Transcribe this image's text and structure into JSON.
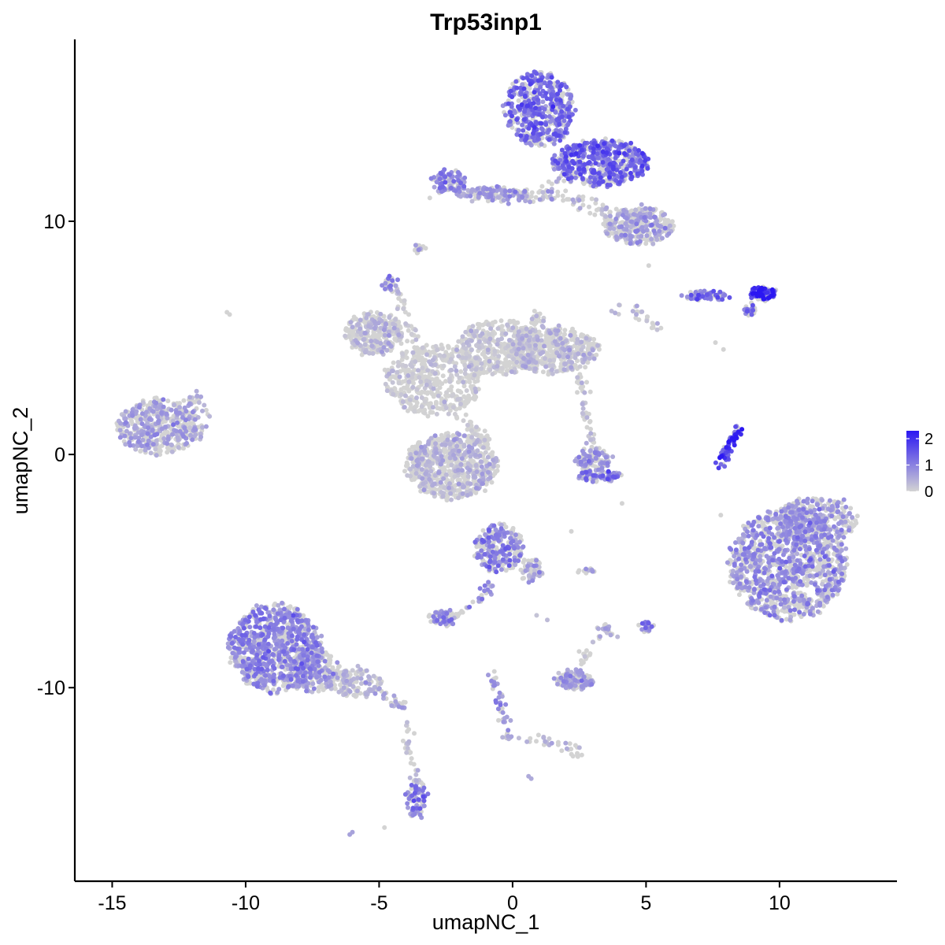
{
  "chart_data": {
    "type": "scatter",
    "title": "Trp53inp1",
    "xlabel": "umapNC_1",
    "ylabel": "umapNC_2",
    "xlim": [
      -16.4,
      14.4
    ],
    "ylim": [
      -18.3,
      17.8
    ],
    "x_ticks": [
      -15,
      -10,
      -5,
      0,
      5,
      10
    ],
    "x_tick_labels": [
      "-15",
      "-10",
      "-5",
      "0",
      "5",
      "10"
    ],
    "y_ticks": [
      -10,
      0,
      10
    ],
    "y_tick_labels": [
      "-10",
      "0",
      "10"
    ],
    "grid": false,
    "legend": {
      "position": "right",
      "type": "colorbar",
      "labels": [
        "2",
        "1",
        "0"
      ],
      "values": [
        2,
        1,
        0
      ],
      "range": [
        0,
        2.3
      ],
      "low_color": "#d3d3d3",
      "high_color": "#2b17f2"
    },
    "clusters": [
      {
        "cx": -13.3,
        "cy": 1.2,
        "rx": 1.5,
        "ry": 1.2,
        "n": 420,
        "expr": 0.55
      },
      {
        "cx": -11.9,
        "cy": 1.6,
        "rx": 0.5,
        "ry": 1.0,
        "n": 70,
        "expr": 0.45
      },
      {
        "cx": -8.9,
        "cy": -8.3,
        "rx": 1.7,
        "ry": 1.9,
        "n": 900,
        "expr": 0.85
      },
      {
        "cx": -7.5,
        "cy": -9.3,
        "rx": 1.0,
        "ry": 0.9,
        "n": 220,
        "expr": 0.6
      },
      {
        "cx": -5.9,
        "cy": -9.8,
        "rx": 1.0,
        "ry": 0.6,
        "n": 140,
        "expr": 0.35
      },
      {
        "cx": -3.6,
        "cy": -14.8,
        "rx": 0.35,
        "ry": 0.8,
        "n": 80,
        "expr": 0.9
      },
      {
        "cx": -5.2,
        "cy": 5.2,
        "rx": 1.1,
        "ry": 0.9,
        "n": 300,
        "expr": 0.35
      },
      {
        "cx": -2.3,
        "cy": -0.5,
        "rx": 1.7,
        "ry": 1.4,
        "n": 700,
        "expr": 0.35
      },
      {
        "cx": -3.0,
        "cy": 3.2,
        "rx": 1.8,
        "ry": 1.5,
        "n": 450,
        "expr": 0.15
      },
      {
        "cx": -0.5,
        "cy": 4.6,
        "rx": 1.6,
        "ry": 1.2,
        "n": 400,
        "expr": 0.2
      },
      {
        "cx": 1.5,
        "cy": 4.5,
        "rx": 1.7,
        "ry": 1.0,
        "n": 450,
        "expr": 0.3
      },
      {
        "cx": -4.6,
        "cy": 7.3,
        "rx": 0.3,
        "ry": 0.3,
        "n": 25,
        "expr": 0.8
      },
      {
        "cx": -3.5,
        "cy": 8.8,
        "rx": 0.2,
        "ry": 0.2,
        "n": 15,
        "expr": 0.4
      },
      {
        "cx": 1.0,
        "cy": 14.8,
        "rx": 1.3,
        "ry": 1.6,
        "n": 500,
        "expr": 1.15
      },
      {
        "cx": 3.3,
        "cy": 12.5,
        "rx": 1.8,
        "ry": 1.0,
        "n": 500,
        "expr": 1.2
      },
      {
        "cx": 4.7,
        "cy": 9.8,
        "rx": 1.3,
        "ry": 0.8,
        "n": 300,
        "expr": 0.55
      },
      {
        "cx": -2.4,
        "cy": 11.7,
        "rx": 0.6,
        "ry": 0.5,
        "n": 100,
        "expr": 0.8
      },
      {
        "cx": -0.8,
        "cy": 11.2,
        "rx": 1.4,
        "ry": 0.25,
        "n": 120,
        "expr": 0.6
      },
      {
        "cx": 9.4,
        "cy": 6.9,
        "rx": 0.5,
        "ry": 0.25,
        "n": 90,
        "expr": 1.9
      },
      {
        "cx": 7.3,
        "cy": 6.8,
        "rx": 0.9,
        "ry": 0.2,
        "n": 60,
        "expr": 1.2
      },
      {
        "cx": 8.9,
        "cy": 6.2,
        "rx": 0.2,
        "ry": 0.25,
        "n": 20,
        "expr": 1.1
      },
      {
        "cx": 10.3,
        "cy": -4.7,
        "rx": 2.2,
        "ry": 2.4,
        "n": 1100,
        "expr": 0.75
      },
      {
        "cx": 11.4,
        "cy": -2.8,
        "rx": 1.5,
        "ry": 1.0,
        "n": 300,
        "expr": 0.7
      },
      {
        "cx": 3.0,
        "cy": -0.2,
        "rx": 0.6,
        "ry": 0.5,
        "n": 110,
        "expr": 0.7
      },
      {
        "cx": 3.2,
        "cy": -0.9,
        "rx": 0.8,
        "ry": 0.25,
        "n": 80,
        "expr": 1.0
      },
      {
        "cx": -0.5,
        "cy": -4.0,
        "rx": 0.9,
        "ry": 1.0,
        "n": 250,
        "expr": 0.9
      },
      {
        "cx": 0.7,
        "cy": -5.0,
        "rx": 0.4,
        "ry": 0.5,
        "n": 60,
        "expr": 0.5
      },
      {
        "cx": -2.6,
        "cy": -7.0,
        "rx": 0.5,
        "ry": 0.35,
        "n": 60,
        "expr": 0.8
      },
      {
        "cx": 2.3,
        "cy": -9.7,
        "rx": 0.7,
        "ry": 0.35,
        "n": 150,
        "expr": 0.6
      },
      {
        "cx": 5.0,
        "cy": -7.4,
        "rx": 0.25,
        "ry": 0.25,
        "n": 25,
        "expr": 1.0
      },
      {
        "cx": 2.7,
        "cy": -5.0,
        "rx": 0.35,
        "ry": 0.1,
        "n": 12,
        "expr": 0.6
      }
    ],
    "strands": [
      {
        "points": [
          [
            8.6,
            1.1
          ],
          [
            8.3,
            0.8
          ],
          [
            8.0,
            0.2
          ],
          [
            7.8,
            -0.4
          ]
        ],
        "n": 60,
        "spread": 0.1,
        "expr": 1.7
      },
      {
        "points": [
          [
            -4.5,
            7.3
          ],
          [
            -3.9,
            5.8
          ],
          [
            -3.5,
            4.2
          ],
          [
            -3.2,
            3.0
          ]
        ],
        "n": 50,
        "spread": 0.12,
        "expr": 0.15
      },
      {
        "points": [
          [
            -2.6,
            2.2
          ],
          [
            -1.7,
            1.2
          ],
          [
            -1.0,
            0.6
          ],
          [
            -1.3,
            0.7
          ]
        ],
        "n": 50,
        "spread": 0.15,
        "expr": 0.1
      },
      {
        "points": [
          [
            0.2,
            4.8
          ],
          [
            0.8,
            5.6
          ],
          [
            1.0,
            6.0
          ]
        ],
        "n": 30,
        "spread": 0.12,
        "expr": 0.4
      },
      {
        "points": [
          [
            2.5,
            3.3
          ],
          [
            2.6,
            2.3
          ],
          [
            2.9,
            1.2
          ],
          [
            3.0,
            0.4
          ]
        ],
        "n": 40,
        "spread": 0.12,
        "expr": 0.3
      },
      {
        "points": [
          [
            -0.9,
            11.2
          ],
          [
            0.3,
            11.0
          ],
          [
            1.3,
            11.0
          ],
          [
            1.8,
            12.0
          ]
        ],
        "n": 60,
        "spread": 0.15,
        "expr": 0.6
      },
      {
        "points": [
          [
            1.0,
            11.3
          ],
          [
            2.5,
            10.8
          ],
          [
            3.5,
            10.4
          ],
          [
            4.0,
            9.8
          ]
        ],
        "n": 60,
        "spread": 0.2,
        "expr": 0.35
      },
      {
        "points": [
          [
            -0.7,
            -5.5
          ],
          [
            -1.2,
            -6.2
          ],
          [
            -2.0,
            -6.8
          ],
          [
            -2.6,
            -7.2
          ]
        ],
        "n": 45,
        "spread": 0.1,
        "expr": 0.85
      },
      {
        "points": [
          [
            -0.9,
            -9.2
          ],
          [
            -0.6,
            -10.2
          ],
          [
            -0.3,
            -11.5
          ],
          [
            -0.2,
            -12.2
          ]
        ],
        "n": 40,
        "spread": 0.1,
        "expr": 0.7
      },
      {
        "points": [
          [
            -0.2,
            -12.1
          ],
          [
            0.8,
            -12.2
          ],
          [
            1.6,
            -12.4
          ],
          [
            2.5,
            -12.8
          ]
        ],
        "n": 40,
        "spread": 0.1,
        "expr": 0.4
      },
      {
        "points": [
          [
            -4.0,
            -11.3
          ],
          [
            -3.9,
            -12.3
          ],
          [
            -3.8,
            -13.4
          ],
          [
            -3.6,
            -14.0
          ]
        ],
        "n": 30,
        "spread": 0.1,
        "expr": 0.3
      },
      {
        "points": [
          [
            -5.5,
            -9.8
          ],
          [
            -4.7,
            -10.4
          ],
          [
            -4.1,
            -10.8
          ]
        ],
        "n": 30,
        "spread": 0.1,
        "expr": 0.55
      },
      {
        "points": [
          [
            2.3,
            -9.4
          ],
          [
            2.8,
            -8.5
          ],
          [
            3.2,
            -7.8
          ],
          [
            3.4,
            -7.4
          ]
        ],
        "n": 25,
        "spread": 0.1,
        "expr": 0.4
      },
      {
        "points": [
          [
            3.5,
            -7.3
          ],
          [
            3.6,
            -7.8
          ]
        ],
        "n": 10,
        "spread": 0.08,
        "expr": 0.5
      },
      {
        "points": [
          [
            5.5,
            5.3
          ],
          [
            5.0,
            5.9
          ],
          [
            3.8,
            6.3
          ]
        ],
        "n": 25,
        "spread": 0.15,
        "expr": 0.35
      }
    ],
    "outliers": [
      {
        "x": -10.7,
        "y": 6.1,
        "v": 0
      },
      {
        "x": -10.6,
        "y": 6.0,
        "v": 0
      },
      {
        "x": -4.8,
        "y": -16.0,
        "v": 0
      },
      {
        "x": -6.1,
        "y": -16.3,
        "v": 0.6
      },
      {
        "x": -6.0,
        "y": -16.2,
        "v": 0.6
      },
      {
        "x": 4.1,
        "y": -2.1,
        "v": 0
      },
      {
        "x": 5.1,
        "y": 8.1,
        "v": 0
      },
      {
        "x": 7.6,
        "y": 4.8,
        "v": 0
      },
      {
        "x": 7.9,
        "y": 4.5,
        "v": 0
      },
      {
        "x": 7.8,
        "y": -2.6,
        "v": 0
      },
      {
        "x": 2.2,
        "y": -3.3,
        "v": 0
      },
      {
        "x": 0.6,
        "y": -13.8,
        "v": 0.5
      },
      {
        "x": 0.7,
        "y": -13.9,
        "v": 0.5
      },
      {
        "x": -3.1,
        "y": 11.0,
        "v": 0
      },
      {
        "x": 2.7,
        "y": 1.5,
        "v": 0
      },
      {
        "x": 1.3,
        "y": -7.1,
        "v": 0.3
      },
      {
        "x": 0.9,
        "y": -6.9,
        "v": 0.2
      }
    ]
  }
}
